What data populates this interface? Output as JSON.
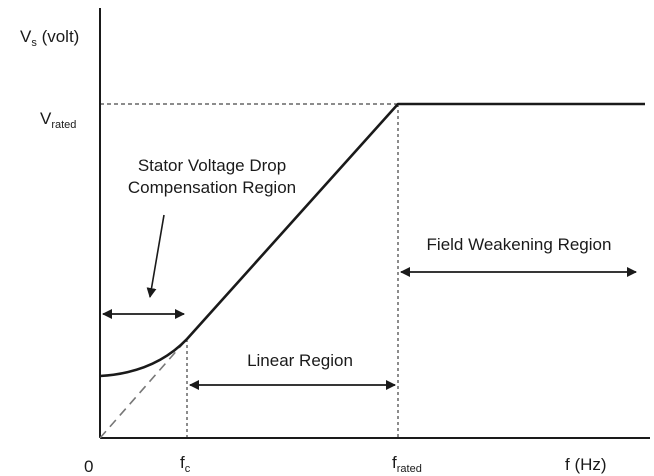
{
  "diagram": {
    "y_axis": {
      "symbol": "V",
      "sub": "s",
      "unit": " (volt)"
    },
    "x_axis": {
      "label": "f (Hz)"
    },
    "origin_label": "0",
    "v_rated": {
      "symbol": "V",
      "sub": "rated"
    },
    "f_c": {
      "symbol": "f",
      "sub": "c"
    },
    "f_rated": {
      "symbol": "f",
      "sub": "rated"
    },
    "regions": {
      "compensation_line1": "Stator Voltage Drop",
      "compensation_line2": "Compensation Region",
      "linear": "Linear Region",
      "field_weakening": "Field Weakening Region"
    },
    "colors": {
      "ink": "#1a1a1a",
      "dashed_ref": "#777777"
    }
  }
}
